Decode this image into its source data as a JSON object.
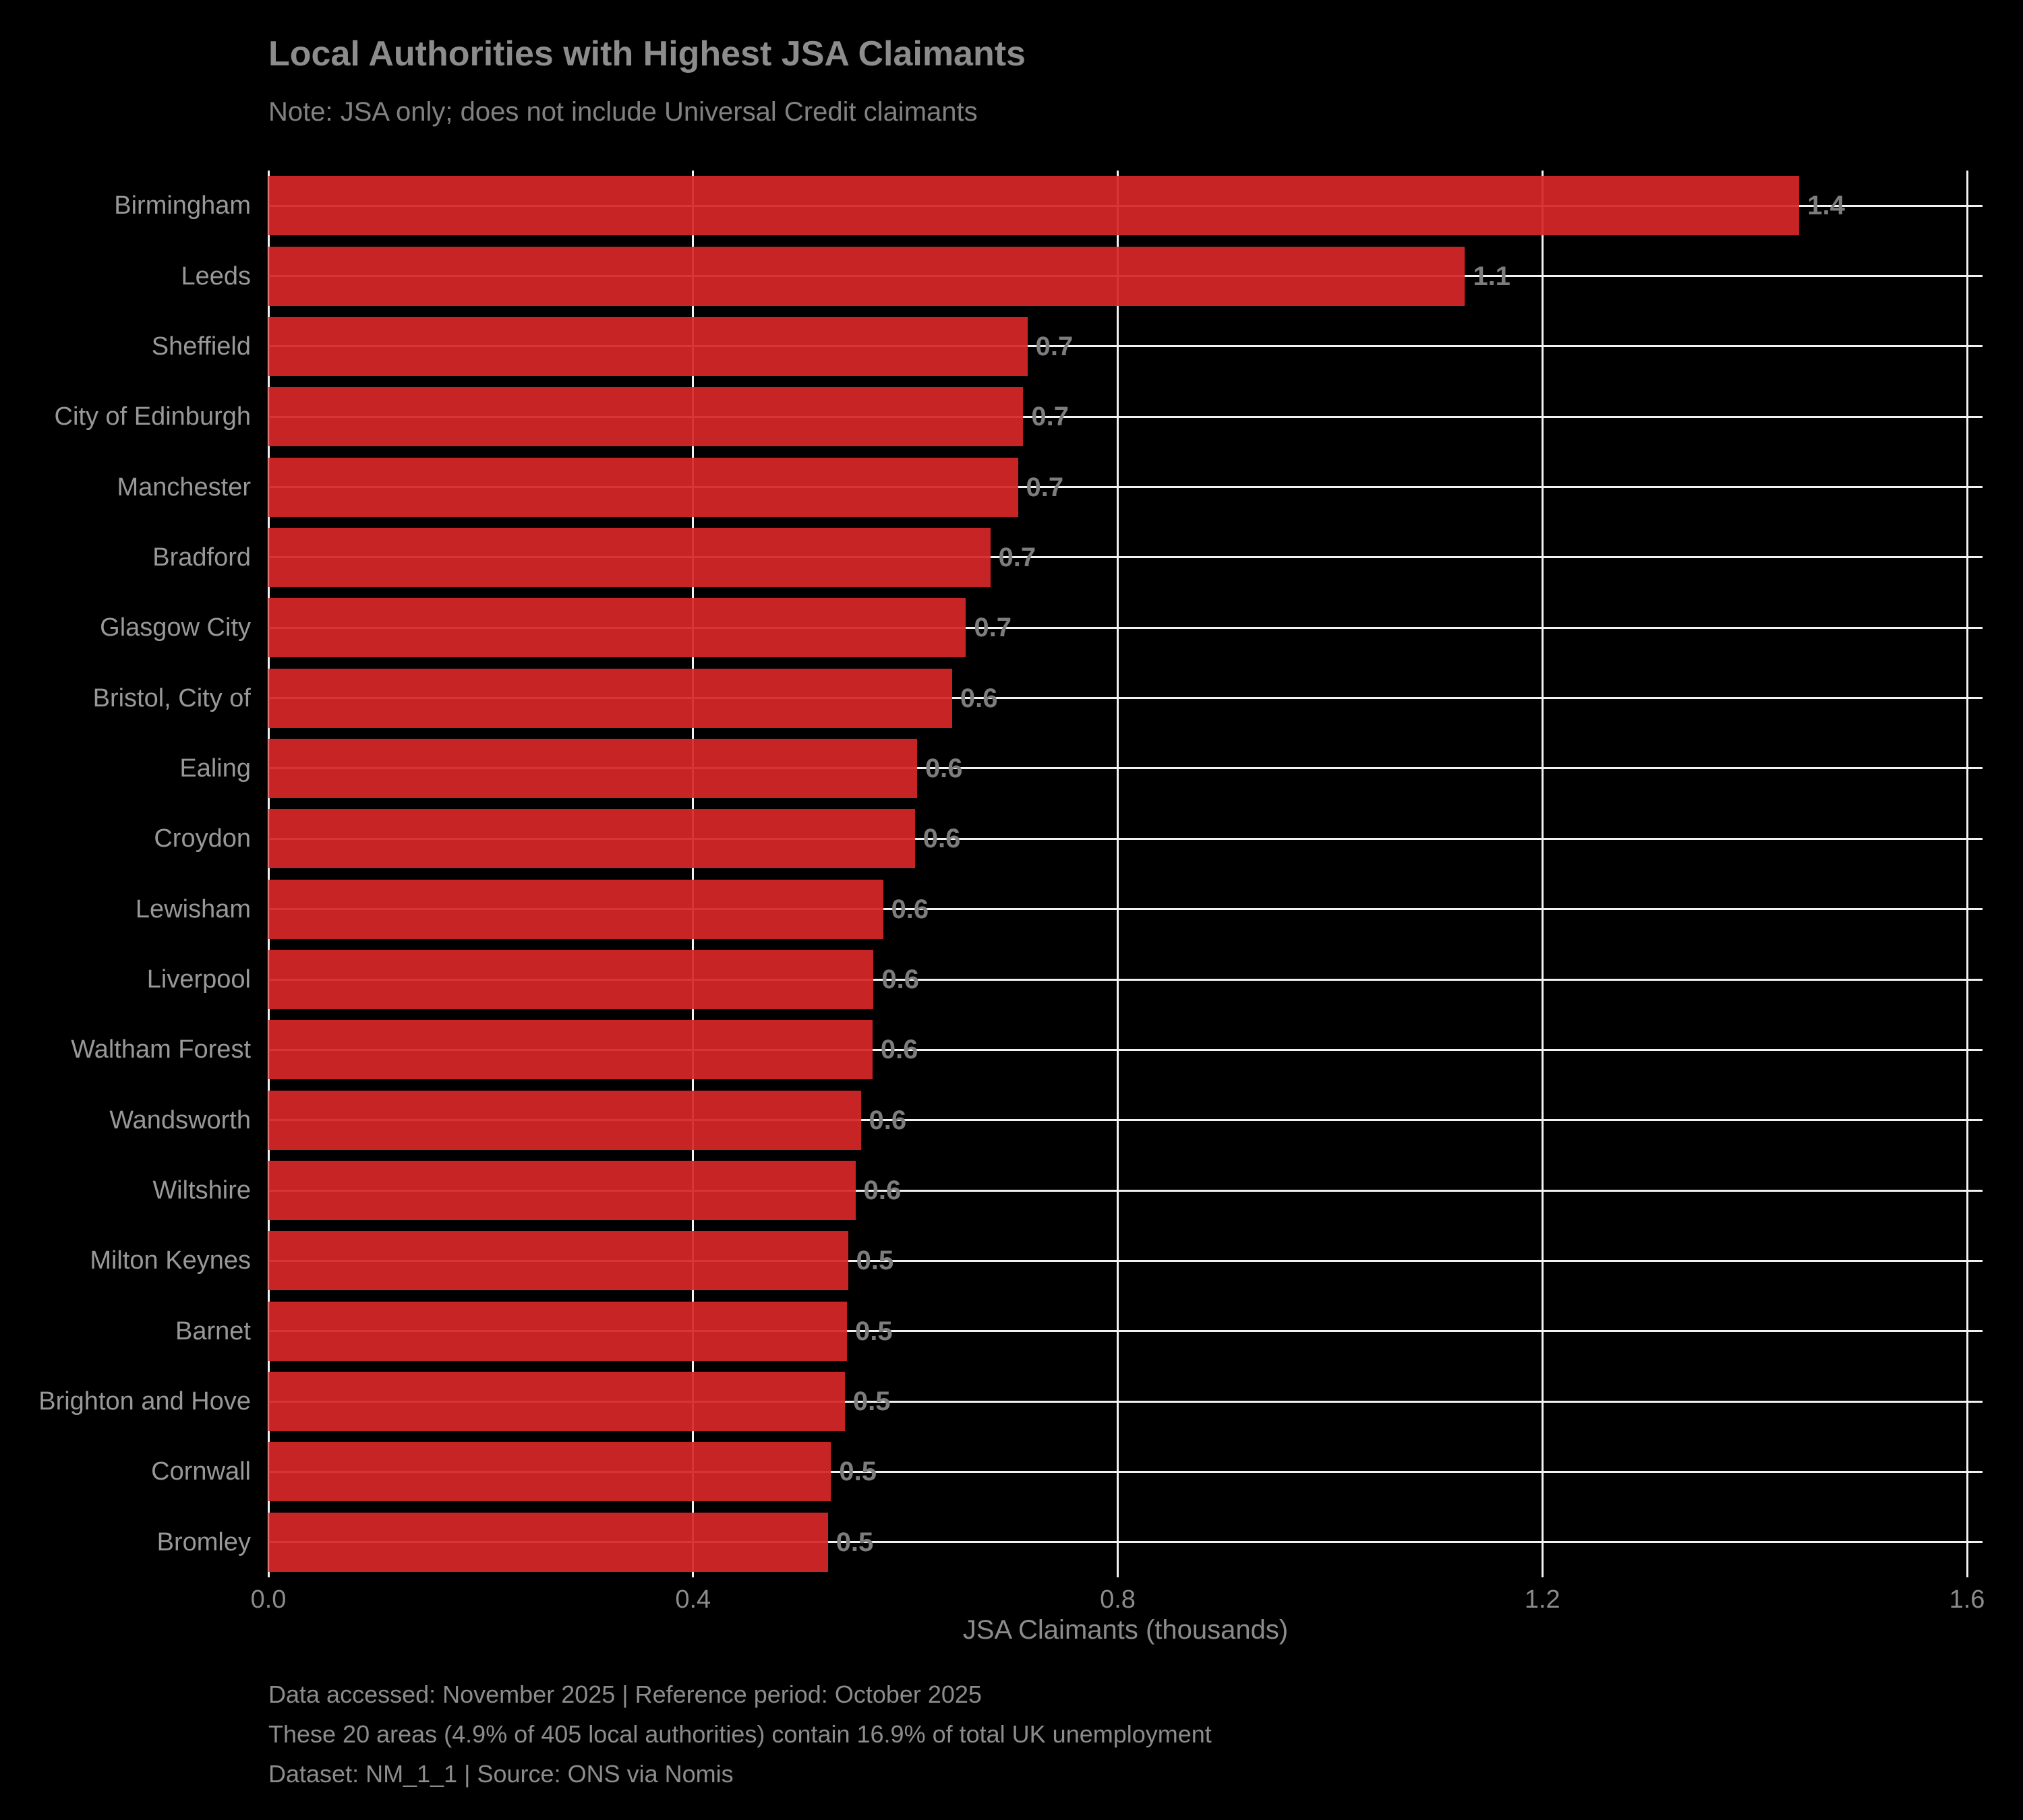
{
  "title": "Local Authorities with Highest JSA Claimants",
  "subtitle": "Note: JSA only; does not include Universal Credit claimants",
  "chart_data": {
    "type": "bar",
    "orientation": "horizontal",
    "title": "Local Authorities with Highest JSA Claimants",
    "subtitle": "Note: JSA only; does not include Universal Credit claimants",
    "xlabel": "JSA Claimants (thousands)",
    "ylabel": "",
    "xlim": [
      0,
      1.6
    ],
    "grid": true,
    "legend": "none",
    "background_color": "#000000",
    "bar_color": "#d62728",
    "gridline_color": "#f2f2f2",
    "categories": [
      "Birmingham",
      "Leeds",
      "Sheffield",
      "City of Edinburgh",
      "Manchester",
      "Bradford",
      "Glasgow City",
      "Bristol, City of",
      "Ealing",
      "Croydon",
      "Lewisham",
      "Liverpool",
      "Waltham Forest",
      "Wandsworth",
      "Wiltshire",
      "Milton Keynes",
      "Barnet",
      "Brighton and Hove",
      "Cornwall",
      "Bromley"
    ],
    "values": [
      1.442,
      1.127,
      0.715,
      0.711,
      0.706,
      0.68,
      0.657,
      0.644,
      0.611,
      0.609,
      0.579,
      0.57,
      0.569,
      0.558,
      0.553,
      0.546,
      0.545,
      0.543,
      0.53,
      0.527
    ],
    "value_labels": [
      "1.4",
      "1.1",
      "0.7",
      "0.7",
      "0.7",
      "0.7",
      "0.7",
      "0.6",
      "0.6",
      "0.6",
      "0.6",
      "0.6",
      "0.6",
      "0.6",
      "0.6",
      "0.5",
      "0.5",
      "0.5",
      "0.5",
      "0.5"
    ],
    "xticks": [
      0.0,
      0.4,
      0.8,
      1.2,
      1.6
    ],
    "xtick_labels": [
      "0.0",
      "0.4",
      "0.8",
      "1.2",
      "1.6"
    ]
  },
  "footer": {
    "line1": "Data accessed: November 2025 | Reference period: October 2025",
    "line2": "These 20 areas (4.9% of 405 local authorities) contain 16.9% of total UK unemployment",
    "line3": "Dataset: NM_1_1 | Source: ONS via Nomis"
  }
}
